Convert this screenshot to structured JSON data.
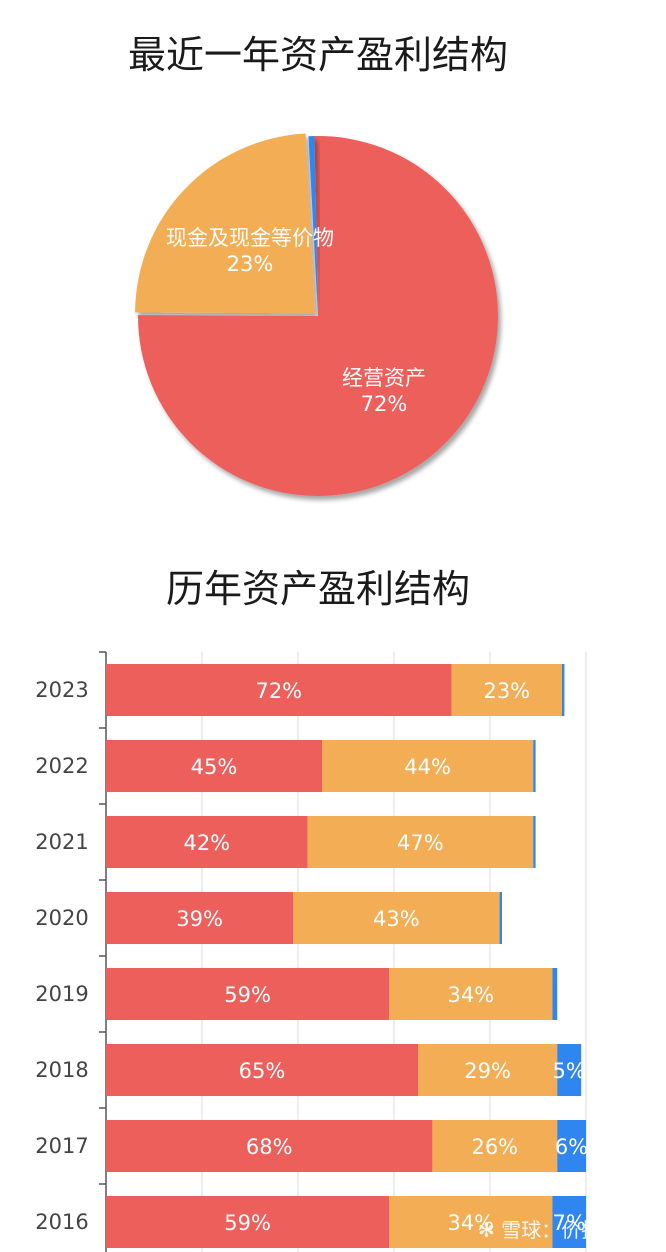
{
  "chart_data": [
    {
      "type": "pie",
      "title": "最近一年资产盈利结构",
      "slices": [
        {
          "label": "经营资产",
          "value": 72,
          "display": "72%",
          "color": "#ec5f5a"
        },
        {
          "label": "现金及现金等价物",
          "value": 23,
          "display": "23%",
          "color": "#f3ad55"
        },
        {
          "label": "",
          "value": 0.5,
          "display": "",
          "color": "#2f86f0"
        }
      ]
    },
    {
      "type": "bar",
      "orientation": "horizontal",
      "stacked": true,
      "title": "历年资产盈利结构",
      "categories": [
        "2023",
        "2022",
        "2021",
        "2020",
        "2019",
        "2018",
        "2017",
        "2016"
      ],
      "series": [
        {
          "color": "#ec5f5a",
          "values": [
            72,
            45,
            42,
            39,
            59,
            65,
            68,
            59
          ]
        },
        {
          "color": "#f3ad55",
          "values": [
            23,
            44,
            47,
            43,
            34,
            29,
            26,
            34
          ]
        },
        {
          "color": "#2f86f0",
          "values": [
            0.5,
            0.5,
            0.5,
            0.5,
            1,
            5,
            6,
            7
          ]
        }
      ],
      "xlim": [
        0,
        100
      ],
      "grid": true
    }
  ],
  "watermark": "✻ 雪球：价投问道"
}
